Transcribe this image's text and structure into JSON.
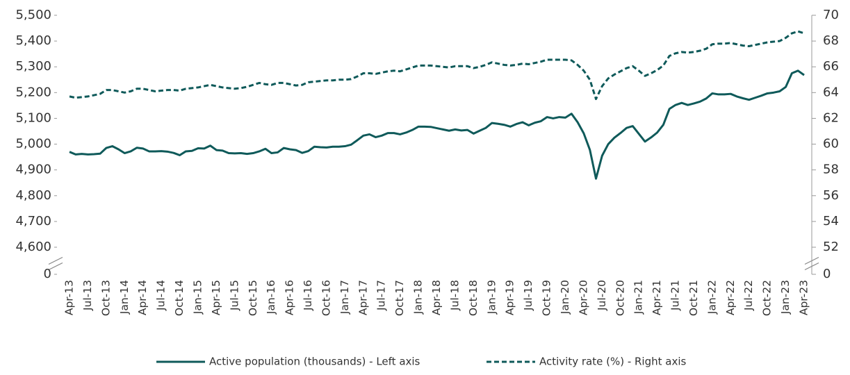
{
  "chart_data": {
    "type": "line",
    "categories": [
      "Apr-13",
      null,
      null,
      "Jul-13",
      null,
      null,
      "Oct-13",
      null,
      null,
      "Jan-14",
      null,
      null,
      "Apr-14",
      null,
      null,
      "Jul-14",
      null,
      null,
      "Oct-14",
      null,
      null,
      "Jan-15",
      null,
      null,
      "Apr-15",
      null,
      null,
      "Jul-15",
      null,
      null,
      "Oct-15",
      null,
      null,
      "Jan-16",
      null,
      null,
      "Apr-16",
      null,
      null,
      "Jul-16",
      null,
      null,
      "Oct-16",
      null,
      null,
      "Jan-17",
      null,
      null,
      "Apr-17",
      null,
      null,
      "Jul-17",
      null,
      null,
      "Oct-17",
      null,
      null,
      "Jan-18",
      null,
      null,
      "Apr-18",
      null,
      null,
      "Jul-18",
      null,
      null,
      "Oct-18",
      null,
      null,
      "Jan-19",
      null,
      null,
      "Apr-19",
      null,
      null,
      "Jul-19",
      null,
      null,
      "Oct-19",
      null,
      null,
      "Jan-20",
      null,
      null,
      "Apr-20",
      null,
      null,
      "Jul-20",
      null,
      null,
      "Oct-20",
      null,
      null,
      "Jan-21",
      null,
      null,
      "Apr-21",
      null,
      null,
      "Jul-21",
      null,
      null,
      "Oct-21",
      null,
      null,
      "Jan-22",
      null,
      null,
      "Apr-22",
      null,
      null,
      "Jul-22",
      null,
      null,
      "Oct-22",
      null,
      null,
      "Jan-23",
      null,
      null,
      "Apr-23"
    ],
    "series": [
      {
        "name": "Active population (thousands) - Left axis",
        "color": "#0f5a5a",
        "dash": false,
        "axis": "y",
        "values": [
          4970,
          4960,
          4962,
          4960,
          4961,
          4963,
          4985,
          4992,
          4980,
          4965,
          4972,
          4986,
          4983,
          4972,
          4972,
          4973,
          4971,
          4966,
          4957,
          4972,
          4974,
          4984,
          4983,
          4994,
          4977,
          4975,
          4965,
          4964,
          4965,
          4962,
          4965,
          4972,
          4982,
          4965,
          4968,
          4985,
          4980,
          4977,
          4966,
          4973,
          4990,
          4988,
          4987,
          4990,
          4990,
          4992,
          4998,
          5015,
          5033,
          5038,
          5027,
          5033,
          5043,
          5043,
          5038,
          5045,
          5055,
          5068,
          5068,
          5067,
          5062,
          5057,
          5052,
          5057,
          5053,
          5055,
          5041,
          5052,
          5063,
          5082,
          5079,
          5075,
          5068,
          5078,
          5085,
          5073,
          5083,
          5089,
          5105,
          5100,
          5105,
          5103,
          5118,
          5085,
          5042,
          4978,
          4866,
          4955,
          5000,
          5025,
          5043,
          5063,
          5070,
          5040,
          5010,
          5026,
          5045,
          5075,
          5137,
          5152,
          5160,
          5152,
          5158,
          5165,
          5177,
          5197,
          5193,
          5193,
          5195,
          5185,
          5178,
          5172,
          5180,
          5188,
          5197,
          5200,
          5205,
          5222,
          5275,
          5285,
          5268
        ]
      },
      {
        "name": "Activity rate (%) - Right axis",
        "color": "#0f5a5a",
        "dash": true,
        "axis": "y2",
        "values": [
          63.7,
          63.6,
          63.65,
          63.7,
          63.8,
          63.9,
          64.2,
          64.2,
          64.1,
          64.0,
          64.1,
          64.3,
          64.3,
          64.2,
          64.1,
          64.15,
          64.2,
          64.2,
          64.15,
          64.3,
          64.35,
          64.4,
          64.5,
          64.6,
          64.5,
          64.4,
          64.35,
          64.3,
          64.35,
          64.45,
          64.6,
          64.75,
          64.65,
          64.6,
          64.75,
          64.75,
          64.65,
          64.55,
          64.6,
          64.8,
          64.85,
          64.9,
          64.95,
          64.95,
          65.0,
          65.0,
          65.05,
          65.25,
          65.5,
          65.5,
          65.45,
          65.55,
          65.65,
          65.7,
          65.65,
          65.8,
          65.95,
          66.1,
          66.1,
          66.1,
          66.05,
          66.0,
          65.95,
          66.05,
          66.05,
          66.05,
          65.9,
          66.0,
          66.15,
          66.35,
          66.25,
          66.15,
          66.1,
          66.15,
          66.25,
          66.2,
          66.3,
          66.4,
          66.55,
          66.55,
          66.55,
          66.55,
          66.5,
          66.15,
          65.7,
          65.0,
          63.5,
          64.5,
          65.1,
          65.4,
          65.65,
          65.9,
          66.05,
          65.7,
          65.3,
          65.5,
          65.75,
          66.1,
          66.85,
          67.05,
          67.15,
          67.1,
          67.15,
          67.25,
          67.4,
          67.75,
          67.8,
          67.8,
          67.85,
          67.75,
          67.65,
          67.6,
          67.7,
          67.8,
          67.9,
          67.95,
          68.0,
          68.25,
          68.6,
          68.75,
          68.6
        ]
      }
    ],
    "ylim": [
      0,
      5500
    ],
    "y_break": [
      0,
      4600
    ],
    "yticks": [
      0,
      {
        "value": 4600,
        "label": "4,600"
      },
      {
        "value": 4700,
        "label": "4,700"
      },
      {
        "value": 4800,
        "label": "4,800"
      },
      {
        "value": 4900,
        "label": "4,900"
      },
      {
        "value": 5000,
        "label": "5,000"
      },
      {
        "value": 5100,
        "label": "5,100"
      },
      {
        "value": 5200,
        "label": "5,200"
      },
      {
        "value": 5300,
        "label": "5,300"
      },
      {
        "value": 5400,
        "label": "5,400"
      },
      {
        "value": 5500,
        "label": "5,500"
      }
    ],
    "y2lim": [
      0,
      70
    ],
    "y2_break": [
      0,
      52
    ],
    "y2ticks": [
      0,
      52,
      54,
      56,
      58,
      60,
      62,
      64,
      66,
      68,
      70
    ],
    "legend": "bottom"
  }
}
